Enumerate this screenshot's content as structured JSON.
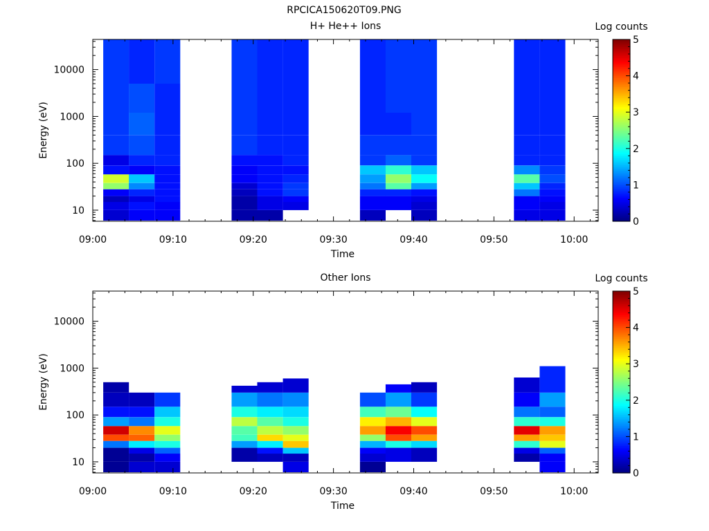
{
  "figure_title": "RPCICA150620T09.PNG",
  "chart_data": [
    {
      "type": "heatmap",
      "title": "H+ He++ Ions",
      "xlabel": "Time",
      "ylabel": "Energy (eV)",
      "x_ticks": [
        "09:00",
        "09:10",
        "09:20",
        "09:30",
        "09:40",
        "09:50",
        "10:00"
      ],
      "x_range": [
        "09:00",
        "10:03"
      ],
      "y_scale": "log",
      "y_ticks": [
        "10",
        "100",
        "1000",
        "10000"
      ],
      "y_range": [
        5.8,
        44000
      ],
      "colorbar": {
        "label": "Log counts",
        "min": 0,
        "max": 5,
        "ticks": [
          "0",
          "1",
          "2",
          "3",
          "4",
          "5"
        ]
      },
      "scans": [
        {
          "columns": [
            {
              "start": "09:01.3",
              "end": "09:04.5",
              "levels": {
                "6-10": 0.4,
                "10-15": 0.5,
                "15-20": 0.3,
                "20-28": 0.6,
                "28-38": 2.6,
                "38-58": 2.9,
                "58-90": 0.7,
                "90-150": 0.5,
                "150-400": 0.9,
                "400-1200": 0.9,
                "1200-5000": 0.9,
                "5000-44000": 0.9
              }
            },
            {
              "start": "09:04.5",
              "end": "09:07.7",
              "levels": {
                "6-10": 0.6,
                "10-15": 0.7,
                "15-20": 0.5,
                "20-28": 0.8,
                "28-38": 1.3,
                "38-58": 1.6,
                "58-90": 0.6,
                "90-150": 0.8,
                "150-400": 1.0,
                "400-1200": 1.1,
                "1200-5000": 1.0,
                "5000-44000": 0.8
              }
            },
            {
              "start": "09:07.7",
              "end": "09:10.9",
              "levels": {
                "6-10": 0.6,
                "10-15": 0.6,
                "15-20": 0.7,
                "20-28": 0.7,
                "28-38": 0.7,
                "38-58": 0.7,
                "58-90": 0.7,
                "90-150": 0.8,
                "150-400": 0.8,
                "400-1200": 0.8,
                "1200-5000": 0.8,
                "5000-44000": 0.9
              }
            }
          ]
        },
        {
          "columns": [
            {
              "start": "09:17.3",
              "end": "09:20.5",
              "levels": {
                "6-10": 0.2,
                "10-15": 0.2,
                "15-20": 0.2,
                "20-28": 0.3,
                "28-38": 0.4,
                "38-58": 0.6,
                "58-90": 0.6,
                "90-150": 0.7,
                "150-400": 0.9,
                "400-1200": 0.9,
                "1200-5000": 0.9,
                "5000-44000": 0.9
              }
            },
            {
              "start": "09:20.5",
              "end": "09:23.7",
              "levels": {
                "6-10": 0.2,
                "10-15": 0.5,
                "15-20": 0.5,
                "20-28": 0.7,
                "28-38": 0.7,
                "38-58": 0.7,
                "58-90": 0.7,
                "90-150": 0.7,
                "150-400": 0.8,
                "400-1200": 0.8,
                "1200-5000": 0.8,
                "5000-44000": 0.8
              }
            },
            {
              "start": "09:23.7",
              "end": "09:26.9",
              "levels": {
                "10-15": 0.5,
                "15-20": 0.6,
                "20-28": 0.9,
                "28-38": 0.9,
                "38-58": 0.8,
                "58-90": 0.7,
                "90-150": 0.8,
                "150-400": 0.8,
                "400-1200": 0.8,
                "1200-5000": 0.8,
                "5000-44000": 0.8
              }
            }
          ]
        },
        {
          "columns": [
            {
              "start": "09:33.3",
              "end": "09:36.5",
              "levels": {
                "6-10": 0.3,
                "10-15": 0.6,
                "15-20": 0.6,
                "20-28": 0.8,
                "28-38": 1.2,
                "38-58": 1.4,
                "58-90": 1.6,
                "90-150": 0.9,
                "150-400": 0.9,
                "400-1200": 0.8,
                "1200-5000": 0.8,
                "5000-44000": 0.8
              }
            },
            {
              "start": "09:36.5",
              "end": "09:39.7",
              "levels": {
                "10-15": 0.6,
                "15-20": 0.6,
                "20-28": 0.8,
                "28-38": 2.3,
                "38-58": 2.6,
                "58-90": 2.1,
                "90-150": 1.1,
                "150-400": 0.9,
                "400-1200": 0.8,
                "1200-5000": 0.9,
                "5000-44000": 0.9
              }
            },
            {
              "start": "09:39.7",
              "end": "09:42.9",
              "levels": {
                "6-10": 0.3,
                "10-15": 0.4,
                "15-20": 0.5,
                "20-28": 0.7,
                "28-38": 1.4,
                "38-58": 1.9,
                "58-90": 1.6,
                "90-150": 0.9,
                "150-400": 0.9,
                "400-1200": 0.9,
                "1200-5000": 0.9,
                "5000-44000": 0.9
              }
            }
          ]
        },
        {
          "columns": [
            {
              "start": "09:52.5",
              "end": "09:55.7",
              "levels": {
                "6-10": 0.5,
                "10-15": 0.6,
                "15-20": 0.6,
                "20-28": 1.2,
                "28-38": 1.6,
                "38-58": 2.3,
                "58-90": 1.3,
                "90-150": 0.8,
                "150-400": 0.8,
                "400-1200": 0.8,
                "1200-5000": 0.8,
                "5000-44000": 0.8
              }
            },
            {
              "start": "09:55.7",
              "end": "09:58.9",
              "levels": {
                "6-10": 0.5,
                "10-15": 0.5,
                "15-20": 0.6,
                "20-28": 0.7,
                "28-38": 0.8,
                "38-58": 1.0,
                "58-90": 0.9,
                "90-150": 0.8,
                "150-400": 0.8,
                "400-1200": 0.8,
                "1200-5000": 0.8,
                "5000-44000": 0.8
              }
            }
          ]
        }
      ]
    },
    {
      "type": "heatmap",
      "title": "Other Ions",
      "xlabel": "Time",
      "ylabel": "Energy (eV)",
      "x_ticks": [
        "09:00",
        "09:10",
        "09:20",
        "09:30",
        "09:40",
        "09:50",
        "10:00"
      ],
      "x_range": [
        "09:00",
        "10:03"
      ],
      "y_scale": "log",
      "y_ticks": [
        "10",
        "100",
        "1000",
        "10000"
      ],
      "y_range": [
        5.8,
        44000
      ],
      "colorbar": {
        "label": "Log counts",
        "min": 0,
        "max": 5,
        "ticks": [
          "0",
          "1",
          "2",
          "3",
          "4",
          "5"
        ]
      },
      "scans": [
        {
          "columns": [
            {
              "start": "09:01.3",
              "end": "09:04.5",
              "levels": {
                "6-10": 0.1,
                "10-15": 0.1,
                "15-20": 0.1,
                "20-28": 1.2,
                "28-38": 4.0,
                "38-58": 4.6,
                "58-90": 1.4,
                "90-150": 0.7,
                "150-300": 0.3,
                "300-500": 0.2
              }
            },
            {
              "start": "09:04.5",
              "end": "09:07.7",
              "levels": {
                "6-10": 0.4,
                "10-15": 0.2,
                "15-20": 0.5,
                "20-28": 1.8,
                "28-38": 3.9,
                "38-58": 3.7,
                "58-90": 1.2,
                "90-150": 0.7,
                "150-300": 0.3
              }
            },
            {
              "start": "09:07.7",
              "end": "09:10.9",
              "levels": {
                "6-10": 0.4,
                "10-15": 0.6,
                "15-20": 1.1,
                "20-28": 2.0,
                "28-38": 2.6,
                "38-58": 3.0,
                "58-90": 2.0,
                "90-150": 1.6,
                "150-300": 0.9
              }
            }
          ]
        },
        {
          "columns": [
            {
              "start": "09:17.3",
              "end": "09:20.5",
              "levels": {
                "10-15": 0.2,
                "15-20": 0.2,
                "20-28": 1.4,
                "28-38": 2.2,
                "38-58": 2.3,
                "58-90": 2.8,
                "90-150": 2.0,
                "150-300": 1.4,
                "300-420": 0.4
              }
            },
            {
              "start": "09:20.5",
              "end": "09:23.7",
              "levels": {
                "10-15": 0.3,
                "15-20": 0.7,
                "20-28": 1.8,
                "28-38": 3.3,
                "38-58": 2.8,
                "58-90": 2.3,
                "90-150": 1.8,
                "150-300": 1.2,
                "300-500": 0.4
              }
            },
            {
              "start": "09:23.7",
              "end": "09:26.9",
              "levels": {
                "6-10": 0.5,
                "10-15": 0.3,
                "15-20": 1.6,
                "20-28": 3.4,
                "28-38": 3.0,
                "38-58": 2.6,
                "58-90": 2.0,
                "90-150": 1.7,
                "150-300": 1.3,
                "300-600": 0.4
              }
            }
          ]
        },
        {
          "columns": [
            {
              "start": "09:33.3",
              "end": "09:36.5",
              "levels": {
                "6-10": 0.1,
                "10-15": 0.4,
                "15-20": 0.6,
                "20-28": 1.5,
                "28-38": 2.6,
                "38-58": 3.6,
                "58-90": 3.2,
                "90-150": 2.2,
                "150-300": 1.0
              }
            },
            {
              "start": "09:36.5",
              "end": "09:39.7",
              "levels": {
                "10-15": 0.5,
                "15-20": 0.5,
                "20-28": 2.0,
                "28-38": 4.0,
                "38-58": 4.4,
                "58-90": 3.5,
                "90-150": 2.4,
                "150-300": 1.4,
                "300-450": 0.6
              }
            },
            {
              "start": "09:39.7",
              "end": "09:42.9",
              "levels": {
                "10-15": 0.3,
                "15-20": 0.3,
                "20-28": 1.7,
                "28-38": 3.6,
                "38-58": 4.0,
                "58-90": 3.0,
                "90-150": 1.9,
                "150-300": 0.9,
                "300-500": 0.3
              }
            }
          ]
        },
        {
          "columns": [
            {
              "start": "09:52.5",
              "end": "09:55.7",
              "levels": {
                "10-15": 0.2,
                "15-20": 0.5,
                "20-28": 2.1,
                "28-38": 3.6,
                "38-58": 4.5,
                "58-90": 2.1,
                "90-150": 1.2,
                "150-300": 0.6,
                "300-630": 0.4
              }
            },
            {
              "start": "09:55.7",
              "end": "09:58.9",
              "levels": {
                "6-10": 0.6,
                "10-15": 0.6,
                "15-20": 1.1,
                "20-28": 3.0,
                "28-38": 3.4,
                "38-58": 3.6,
                "58-90": 2.0,
                "90-150": 1.1,
                "150-300": 1.4,
                "300-1100": 0.8
              }
            }
          ]
        }
      ]
    }
  ]
}
